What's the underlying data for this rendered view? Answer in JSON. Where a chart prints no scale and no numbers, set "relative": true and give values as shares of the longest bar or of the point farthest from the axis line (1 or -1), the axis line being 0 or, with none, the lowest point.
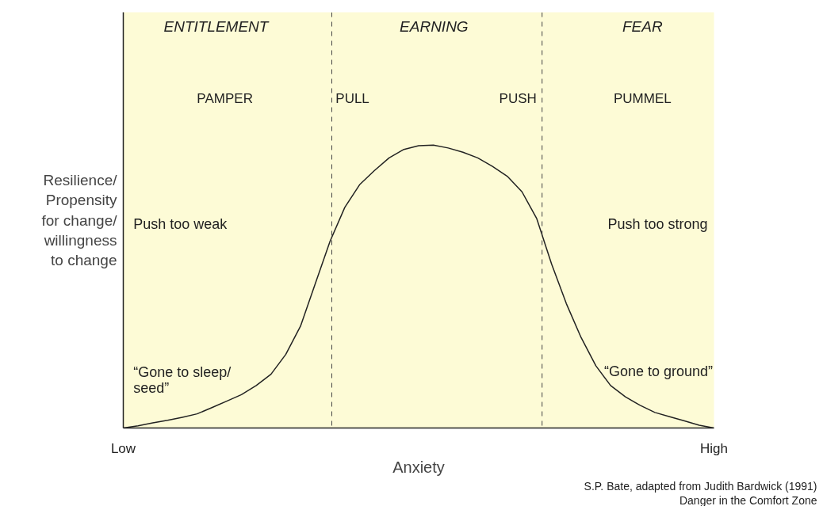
{
  "chart_data": {
    "type": "line",
    "relative": true,
    "xlabel": "Anxiety",
    "ylabel": "Resilience/\nPropensity\nfor change/\nwillingness\nto change",
    "categories": [
      "Low",
      null,
      null,
      null,
      null,
      null,
      null,
      null,
      null,
      null,
      null,
      null,
      null,
      null,
      null,
      null,
      null,
      null,
      null,
      null,
      null,
      null,
      null,
      null,
      null,
      null,
      null,
      null,
      null,
      null,
      null,
      null,
      null,
      null,
      null,
      null,
      null,
      null,
      null,
      null,
      "High"
    ],
    "series": [
      {
        "color": "#222222",
        "values": [
          0,
          0.008,
          0.018,
          0.027,
          0.038,
          0.05,
          0.072,
          0.095,
          0.118,
          0.15,
          0.19,
          0.26,
          0.36,
          0.51,
          0.66,
          0.78,
          0.86,
          0.91,
          0.955,
          0.985,
          0.998,
          1.0,
          0.99,
          0.975,
          0.955,
          0.925,
          0.89,
          0.835,
          0.74,
          0.58,
          0.44,
          0.32,
          0.22,
          0.15,
          0.11,
          0.08,
          0.055,
          0.04,
          0.025,
          0.01,
          0
        ]
      }
    ],
    "annotations": [
      "ENTITLEMENT",
      "EARNING",
      "FEAR",
      "PAMPER",
      "PULL",
      "PUSH",
      "PUMMEL",
      "Push too weak",
      "Push too strong",
      "“Gone to sleep/\nseed”",
      "“Gone to ground”",
      "S.P. Bate, adapted from Judith Bardwick (1991)\nDanger in the Comfort Zone"
    ],
    "tick_labels": "x",
    "line_style": "solid"
  }
}
